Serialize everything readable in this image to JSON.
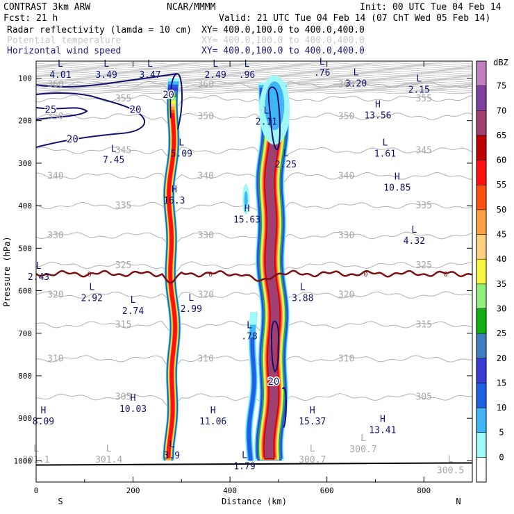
{
  "header": {
    "model": "CONTRAST  3km ARW",
    "org": "NCAR/MMMM",
    "init": "Init: 00 UTC Tue 04 Feb 14",
    "fcst": "Fcst:   21 h",
    "valid": "Valid: 21 UTC Tue 04 Feb 14 (07 ChT Wed 05 Feb 14)",
    "fields": [
      {
        "label": "Radar reflectivity (lamda = 10 cm)",
        "xy": "XY= 400.0,100.0 to 400.0,400.0",
        "color": "#000000"
      },
      {
        "label": "Potential temperature",
        "xy": "XY= 400.0,100.0 to 400.0,400.0",
        "color": "#c8c8c8"
      },
      {
        "label": "Horizontal wind speed",
        "xy": "XY= 400.0,100.0 to 400.0,400.0",
        "color": "#1a1a80"
      }
    ]
  },
  "chart_data": {
    "type": "heatmap",
    "xlabel": "Distance (km)",
    "ylabel": "Pressure (hPa)",
    "xlim": [
      0,
      900
    ],
    "ylim": [
      1050,
      60
    ],
    "x_ticks": [
      0,
      200,
      400,
      600,
      800
    ],
    "y_ticks": [
      100,
      200,
      300,
      400,
      500,
      600,
      700,
      800,
      900,
      1000
    ],
    "x_end_labels": {
      "left": "S",
      "right": "N"
    },
    "colorbar": {
      "unit": "dBZ",
      "levels": [
        0,
        5,
        10,
        15,
        20,
        25,
        30,
        35,
        40,
        45,
        50,
        55,
        60,
        65,
        70,
        75
      ],
      "colors": [
        "#ffffff",
        "#9ff7f7",
        "#3fb7f7",
        "#1f5fe6",
        "#3a3ad6",
        "#3f7fbf",
        "#10b010",
        "#8ff07f",
        "#f7f73f",
        "#ffd07f",
        "#ffa040",
        "#ff5010",
        "#ff1010",
        "#c00000",
        "#a04070",
        "#8040a0",
        "#c080c0"
      ]
    },
    "reflectivity_cores": [
      {
        "x_center": 280,
        "x_halfwidth": 12,
        "p_top": 100,
        "p_bottom": 1000,
        "max_dbz": 55
      },
      {
        "x_center": 487,
        "x_halfwidth": 30,
        "p_top": 110,
        "p_bottom": 1000,
        "max_dbz": 65
      },
      {
        "x_center": 445,
        "x_halfwidth": 8,
        "p_top": 650,
        "p_bottom": 1000,
        "max_dbz": 10
      }
    ],
    "theta_contours": [
      {
        "label": "360",
        "p": 115
      },
      {
        "label": "355",
        "p": 148
      },
      {
        "label": "350",
        "p": 190
      },
      {
        "label": "345",
        "p": 270
      },
      {
        "label": "340",
        "p": 330
      },
      {
        "label": "335",
        "p": 400
      },
      {
        "label": "330",
        "p": 470
      },
      {
        "label": "325",
        "p": 540
      },
      {
        "label": "320",
        "p": 610
      },
      {
        "label": "315",
        "p": 680
      },
      {
        "label": "310",
        "p": 760
      },
      {
        "label": "305",
        "p": 850
      }
    ],
    "freezing_level": {
      "label": "0",
      "p": 560
    },
    "wind_contours": [
      {
        "label": "25",
        "x": 30,
        "p": 175
      },
      {
        "label": "20",
        "x": 205,
        "p": 175
      },
      {
        "label": "20",
        "x": 75,
        "p": 245
      },
      {
        "label": "20",
        "x": 273,
        "p": 140
      },
      {
        "label": "20",
        "x": 490,
        "p": 815
      }
    ],
    "wind_extrema": [
      {
        "type": "L",
        "value": "4.01",
        "x": 50,
        "p": 80
      },
      {
        "type": "L",
        "value": "3.49",
        "x": 145,
        "p": 80
      },
      {
        "type": "L",
        "value": "3.47",
        "x": 235,
        "p": 80
      },
      {
        "type": "L",
        "value": "2.49",
        "x": 370,
        "p": 80
      },
      {
        "type": "L",
        "value": ".96",
        "x": 435,
        "p": 80
      },
      {
        "type": "L",
        "value": ".76",
        "x": 590,
        "p": 75
      },
      {
        "type": "L",
        "value": "3.20",
        "x": 660,
        "p": 100
      },
      {
        "type": "L",
        "value": "2.15",
        "x": 790,
        "p": 115
      },
      {
        "type": "H",
        "value": "13.56",
        "x": 705,
        "p": 175
      },
      {
        "type": "L",
        "value": "2.11",
        "x": 475,
        "p": 190
      },
      {
        "type": "L",
        "value": "5.09",
        "x": 300,
        "p": 265
      },
      {
        "type": "L",
        "value": "7.45",
        "x": 160,
        "p": 280
      },
      {
        "type": "L",
        "value": "1.61",
        "x": 720,
        "p": 265
      },
      {
        "type": "L",
        "value": "2.25",
        "x": 515,
        "p": 290
      },
      {
        "type": "H",
        "value": "10.85",
        "x": 745,
        "p": 345
      },
      {
        "type": "H",
        "value": "16.3",
        "x": 285,
        "p": 375
      },
      {
        "type": "H",
        "value": "15.63",
        "x": 435,
        "p": 420
      },
      {
        "type": "L",
        "value": "4.32",
        "x": 780,
        "p": 470
      },
      {
        "type": "L",
        "value": "2.43",
        "x": 5,
        "p": 555
      },
      {
        "type": "L",
        "value": "2.92",
        "x": 115,
        "p": 605
      },
      {
        "type": "L",
        "value": "3.88",
        "x": 550,
        "p": 605
      },
      {
        "type": "L",
        "value": "2.74",
        "x": 200,
        "p": 635
      },
      {
        "type": "L",
        "value": "2.99",
        "x": 320,
        "p": 630
      },
      {
        "type": "L",
        "value": ".78",
        "x": 440,
        "p": 695
      },
      {
        "type": "H",
        "value": "10.03",
        "x": 200,
        "p": 865
      },
      {
        "type": "H",
        "value": "8.09",
        "x": 15,
        "p": 895
      },
      {
        "type": "H",
        "value": "11.06",
        "x": 365,
        "p": 895
      },
      {
        "type": "H",
        "value": "15.37",
        "x": 570,
        "p": 895
      },
      {
        "type": "H",
        "value": "13.41",
        "x": 715,
        "p": 915
      },
      {
        "type": "L",
        "value": "3.9",
        "x": 280,
        "p": 975
      },
      {
        "type": "L",
        "value": "1.79",
        "x": 430,
        "p": 1000
      }
    ],
    "theta_extrema": [
      {
        "type": "L",
        "value": "301.1",
        "x": 0,
        "p": 985
      },
      {
        "type": "L",
        "value": "301.4",
        "x": 150,
        "p": 985
      },
      {
        "type": "L",
        "value": "300.7",
        "x": 570,
        "p": 985
      },
      {
        "type": "L",
        "value": "300.7",
        "x": 675,
        "p": 960
      },
      {
        "type": "L",
        "value": "300.5",
        "x": 855,
        "p": 1010
      }
    ]
  }
}
